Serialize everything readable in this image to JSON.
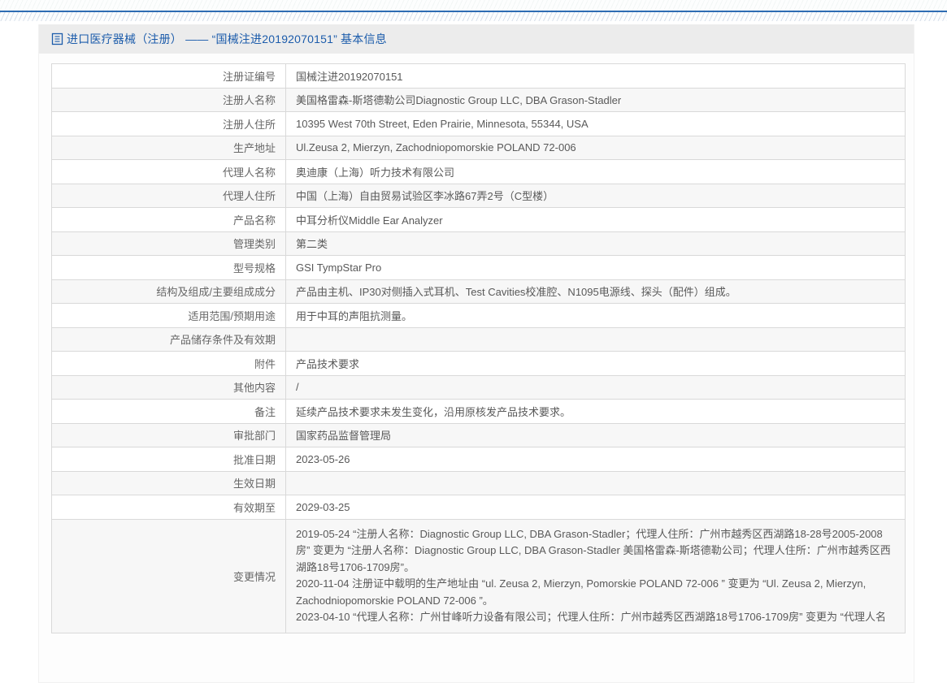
{
  "page": {
    "accent_blue": "#1c5cab",
    "top_line_color": "#2e6cb3",
    "header_band_color": "#ececec",
    "alt_row_color": "#f7f7f7",
    "border_color": "#d9d9d9"
  },
  "header": {
    "icon": "document-icon",
    "title": "进口医疗器械（注册） —— “国械注进20192070151” 基本信息"
  },
  "table": {
    "rows": [
      {
        "label": "注册证编号",
        "value": "国械注进20192070151"
      },
      {
        "label": "注册人名称",
        "value": "美国格雷森-斯塔德勒公司Diagnostic Group LLC, DBA Grason-Stadler"
      },
      {
        "label": "注册人住所",
        "value": "10395 West 70th Street, Eden Prairie, Minnesota, 55344, USA"
      },
      {
        "label": "生产地址",
        "value": "Ul.Zeusa 2, Mierzyn, Zachodniopomorskie POLAND 72-006"
      },
      {
        "label": "代理人名称",
        "value": "奥迪康（上海）听力技术有限公司"
      },
      {
        "label": "代理人住所",
        "value": "中国（上海）自由贸易试验区李冰路67弄2号（C型楼）"
      },
      {
        "label": "产品名称",
        "value": "中耳分析仪Middle Ear Analyzer"
      },
      {
        "label": "管理类别",
        "value": "第二类"
      },
      {
        "label": "型号规格",
        "value": "GSI TympStar Pro"
      },
      {
        "label": "结构及组成/主要组成成分",
        "value": "产品由主机、IP30对侧插入式耳机、Test Cavities校准腔、N1095电源线、探头（配件）组成。"
      },
      {
        "label": "适用范围/预期用途",
        "value": "用于中耳的声阻抗测量。"
      },
      {
        "label": "产品储存条件及有效期",
        "value": ""
      },
      {
        "label": "附件",
        "value": "产品技术要求"
      },
      {
        "label": "其他内容",
        "value": "/"
      },
      {
        "label": "备注",
        "value": "延续产品技术要求未发生变化，沿用原核发产品技术要求。"
      },
      {
        "label": "审批部门",
        "value": "国家药品监督管理局"
      },
      {
        "label": "批准日期",
        "value": "2023-05-26"
      },
      {
        "label": "生效日期",
        "value": ""
      },
      {
        "label": "有效期至",
        "value": "2029-03-25"
      },
      {
        "label": "变更情况",
        "value": [
          "2019-05-24 “注册人名称：Diagnostic Group LLC, DBA Grason-Stadler；代理人住所：广州市越秀区西湖路18-28号2005-2008房” 变更为 “注册人名称：Diagnostic Group LLC, DBA Grason-Stadler 美国格雷森-斯塔德勒公司；代理人住所：广州市越秀区西湖路18号1706-1709房”。",
          "2020-11-04 注册证中载明的生产地址由 “ul. Zeusa 2, Mierzyn, Pomorskie POLAND 72-006 ” 变更为 “Ul. Zeusa 2, Mierzyn, Zachodniopomorskie POLAND 72-006 ”。",
          "2023-04-10 “代理人名称：广州甘峰听力设备有限公司；代理人住所：广州市越秀区西湖路18号1706-1709房” 变更为 “代理人名"
        ]
      }
    ]
  }
}
